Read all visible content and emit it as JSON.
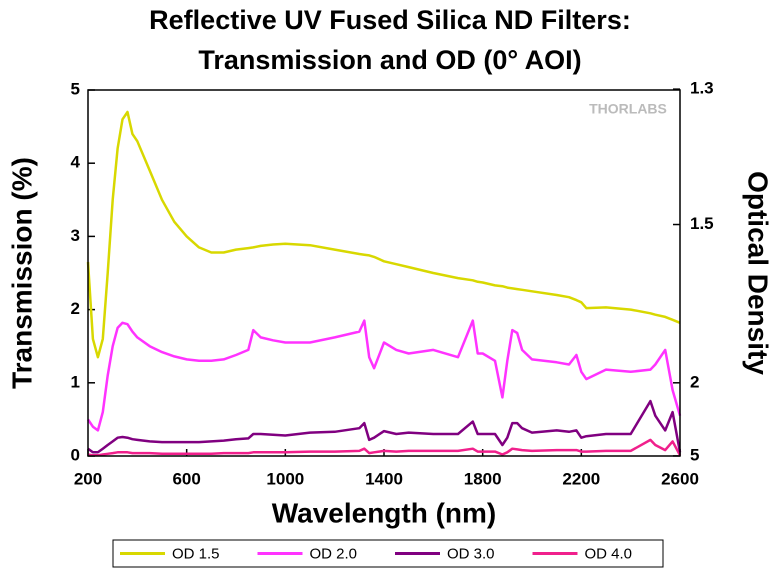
{
  "chart_data": {
    "type": "line",
    "title": "Reflective UV Fused Silica ND Filters:",
    "subtitle": "Transmission and OD (0° AOI)",
    "watermark": "THORLABS",
    "x_label": "Wavelength (nm)",
    "y_label": "Transmission (%)",
    "y2_label": "Optical Density",
    "x": [
      200,
      220,
      240,
      260,
      280,
      300,
      320,
      340,
      360,
      380,
      400,
      450,
      500,
      550,
      600,
      650,
      700,
      750,
      800,
      850,
      870,
      900,
      950,
      1000,
      1100,
      1200,
      1300,
      1320,
      1340,
      1360,
      1400,
      1450,
      1500,
      1600,
      1700,
      1760,
      1780,
      1800,
      1850,
      1880,
      1900,
      1920,
      1940,
      1960,
      2000,
      2100,
      2150,
      2180,
      2200,
      2220,
      2300,
      2400,
      2480,
      2500,
      2540,
      2570,
      2600
    ],
    "series": [
      {
        "name": "OD 1.5",
        "color": "#d8d800",
        "values": [
          2.65,
          1.6,
          1.35,
          1.6,
          2.5,
          3.5,
          4.2,
          4.6,
          4.7,
          4.4,
          4.3,
          3.9,
          3.5,
          3.2,
          3.0,
          2.85,
          2.78,
          2.78,
          2.82,
          2.84,
          2.85,
          2.87,
          2.89,
          2.9,
          2.88,
          2.82,
          2.76,
          2.75,
          2.74,
          2.72,
          2.66,
          2.62,
          2.58,
          2.5,
          2.43,
          2.4,
          2.38,
          2.37,
          2.33,
          2.32,
          2.3,
          2.29,
          2.28,
          2.27,
          2.25,
          2.2,
          2.17,
          2.13,
          2.1,
          2.02,
          2.03,
          2.0,
          1.95,
          1.93,
          1.9,
          1.86,
          1.82
        ]
      },
      {
        "name": "OD 2.0",
        "color": "#ff33ff",
        "values": [
          0.5,
          0.4,
          0.35,
          0.6,
          1.1,
          1.5,
          1.75,
          1.82,
          1.8,
          1.7,
          1.62,
          1.5,
          1.42,
          1.36,
          1.32,
          1.3,
          1.3,
          1.32,
          1.38,
          1.45,
          1.72,
          1.62,
          1.58,
          1.55,
          1.55,
          1.62,
          1.7,
          1.85,
          1.35,
          1.2,
          1.55,
          1.45,
          1.4,
          1.45,
          1.35,
          1.85,
          1.4,
          1.4,
          1.3,
          0.8,
          1.3,
          1.72,
          1.68,
          1.45,
          1.32,
          1.28,
          1.25,
          1.38,
          1.15,
          1.05,
          1.18,
          1.15,
          1.18,
          1.25,
          1.45,
          0.9,
          0.55
        ]
      },
      {
        "name": "OD 3.0",
        "color": "#800080",
        "values": [
          0.1,
          0.05,
          0.05,
          0.1,
          0.15,
          0.2,
          0.25,
          0.26,
          0.25,
          0.23,
          0.22,
          0.2,
          0.19,
          0.19,
          0.19,
          0.19,
          0.2,
          0.21,
          0.23,
          0.24,
          0.3,
          0.3,
          0.29,
          0.28,
          0.32,
          0.33,
          0.38,
          0.45,
          0.22,
          0.25,
          0.34,
          0.3,
          0.32,
          0.3,
          0.3,
          0.47,
          0.3,
          0.3,
          0.3,
          0.15,
          0.25,
          0.45,
          0.45,
          0.38,
          0.32,
          0.35,
          0.33,
          0.35,
          0.25,
          0.27,
          0.3,
          0.3,
          0.75,
          0.55,
          0.35,
          0.6,
          0.05
        ]
      },
      {
        "name": "OD 4.0",
        "color": "#f0208c",
        "values": [
          0.02,
          0.01,
          0.01,
          0.02,
          0.03,
          0.04,
          0.05,
          0.05,
          0.05,
          0.04,
          0.04,
          0.04,
          0.03,
          0.03,
          0.03,
          0.03,
          0.03,
          0.04,
          0.04,
          0.04,
          0.05,
          0.05,
          0.05,
          0.05,
          0.06,
          0.06,
          0.07,
          0.1,
          0.04,
          0.05,
          0.07,
          0.06,
          0.07,
          0.07,
          0.07,
          0.1,
          0.06,
          0.06,
          0.06,
          0.02,
          0.05,
          0.1,
          0.09,
          0.08,
          0.07,
          0.08,
          0.08,
          0.08,
          0.06,
          0.06,
          0.07,
          0.07,
          0.22,
          0.15,
          0.08,
          0.2,
          0.01
        ]
      }
    ],
    "xlim": [
      200,
      2600
    ],
    "xticks": [
      200,
      600,
      1000,
      1400,
      1800,
      2200,
      2600
    ],
    "ylim": [
      0,
      5
    ],
    "yticks": [
      0,
      1,
      2,
      3,
      4,
      5
    ],
    "y2scale": "optical-density",
    "y2ticks": [
      1.3,
      1.5,
      2,
      5
    ],
    "grid": false,
    "legend": "bottom"
  }
}
